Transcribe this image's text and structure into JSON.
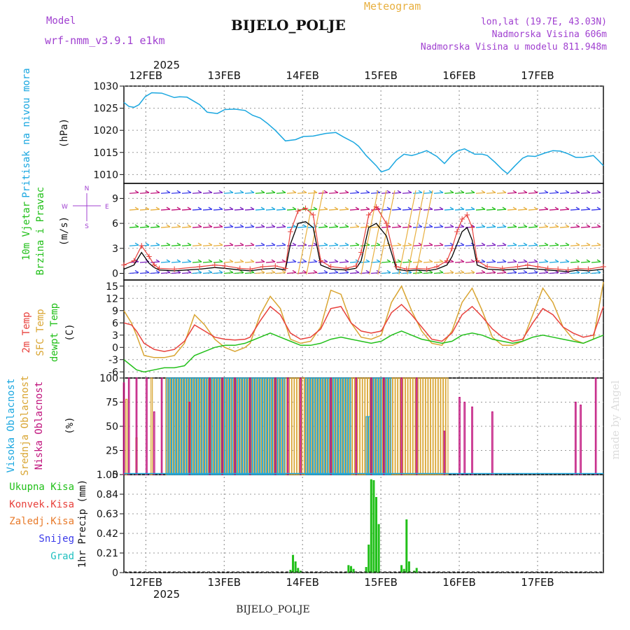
{
  "header": {
    "model_label": "Model",
    "model_name": "wrf-nmm_v3.9.1 e1km",
    "product": "Meteogram",
    "station": "BIJELO_POLJE",
    "coords": "lon,lat (19.7E, 43.03N)",
    "altitude": "Nadmorska Visina 606m",
    "model_altitude": "Nadmorska Visina u modelu 811.948m",
    "footer_station": "BIJELO_POLJE",
    "watermark": "made by Angel"
  },
  "time_axis": {
    "year": "2025",
    "days": [
      "12FEB",
      "13FEB",
      "14FEB",
      "15FEB",
      "16FEB",
      "17FEB"
    ]
  },
  "colors": {
    "pressure": "#1aa7e0",
    "temp2m": "#e8413c",
    "sfc_temp": "#d9a532",
    "dewpt": "#22c01a",
    "high_cloud": "#1aa7e0",
    "mid_cloud": "#d9a532",
    "low_cloud": "#c0127c",
    "total_precip": "#22c01a",
    "conv_precip": "#e8413c",
    "freezing_rain": "#e87a2a",
    "snow": "#3a3aea",
    "hail": "#20c0c0",
    "wind_speed": "#000000",
    "gust": "#e8413c",
    "wind_label": "#22c01a",
    "legend_purple": "#a040d0"
  },
  "chart_data": [
    {
      "type": "line",
      "panel": "pressure",
      "ylabel_name": "Pritisak na nivou mora",
      "unit": "(hPa)",
      "ylim": [
        1008,
        1030
      ],
      "ticks": [
        "1010",
        "1015",
        "1020",
        "1025",
        "1030"
      ],
      "x": [
        0.0,
        0.1,
        0.2,
        0.3,
        0.42,
        0.55,
        0.75,
        1.0,
        1.1,
        1.25,
        1.5,
        1.65,
        1.85,
        2.0,
        2.2,
        2.4,
        2.55,
        2.7,
        2.85,
        3.0,
        3.2,
        3.4,
        3.55,
        3.75,
        4.0,
        4.2,
        4.35,
        4.55,
        4.65,
        4.8,
        5.0,
        5.1,
        5.25,
        5.4,
        5.55,
        5.7,
        5.8,
        6.0,
        6.2,
        6.35,
        6.5,
        6.6,
        6.75,
        6.95,
        7.1,
        7.2,
        7.35,
        7.5,
        7.6,
        7.75,
        7.9,
        8.0,
        8.15,
        8.35,
        8.5,
        8.65,
        8.8,
        8.95,
        9.1,
        9.3,
        9.4,
        9.5
      ],
      "values": [
        1026.3,
        1025.4,
        1025.2,
        1025.8,
        1027.6,
        1028.5,
        1028.4,
        1027.4,
        1027.6,
        1027.5,
        1025.8,
        1024.1,
        1023.8,
        1024.7,
        1024.8,
        1024.5,
        1023.4,
        1022.8,
        1021.5,
        1020.0,
        1017.6,
        1017.9,
        1018.6,
        1018.7,
        1019.3,
        1019.5,
        1018.5,
        1017.3,
        1016.4,
        1014.3,
        1012.0,
        1010.6,
        1011.2,
        1013.3,
        1014.6,
        1014.3,
        1014.6,
        1015.4,
        1014.1,
        1012.5,
        1014.4,
        1015.3,
        1015.8,
        1014.6,
        1014.6,
        1014.3,
        1012.8,
        1011.1,
        1010.2,
        1012.0,
        1013.7,
        1014.2,
        1014.1,
        1014.9,
        1015.4,
        1015.3,
        1014.7,
        1013.9,
        1013.9,
        1014.3,
        1013.2,
        1012.0
      ]
    },
    {
      "type": "line",
      "panel": "wind",
      "ylabel_name": "10m Vjetar",
      "ylabel_name2": "Brzina i Pravac",
      "unit": "(m/s)",
      "ylim": [
        -0.8,
        10.8
      ],
      "ticks": [
        "0",
        "3",
        "6",
        "9"
      ],
      "compass": [
        "W",
        "E",
        "N",
        "S"
      ],
      "barb_levels": [
        0,
        1.3,
        3.3,
        5.5,
        7.6,
        9.6
      ],
      "speed_x": [
        0.0,
        0.2,
        0.35,
        0.5,
        0.6,
        0.7,
        1.0,
        1.5,
        1.8,
        2.0,
        2.3,
        2.5,
        2.75,
        3.0,
        3.2,
        3.3,
        3.45,
        3.6,
        3.75,
        3.9,
        4.1,
        4.4,
        4.6,
        4.7,
        4.85,
        5.0,
        5.2,
        5.4,
        5.6,
        5.8,
        6.0,
        6.2,
        6.4,
        6.5,
        6.6,
        6.7,
        6.8,
        6.9,
        7.0,
        7.2,
        7.5,
        7.8,
        8.0,
        8.2,
        8.4,
        8.6,
        8.8,
        9.0,
        9.2,
        9.5
      ],
      "speed": [
        0.5,
        1.0,
        2.5,
        1.2,
        0.7,
        0.4,
        0.3,
        0.5,
        0.7,
        0.6,
        0.4,
        0.3,
        0.5,
        0.6,
        0.4,
        3.5,
        6.0,
        6.2,
        5.5,
        1.0,
        0.5,
        0.4,
        0.6,
        1.5,
        5.5,
        6.0,
        4.5,
        0.5,
        0.3,
        0.4,
        0.3,
        0.5,
        1.0,
        2.0,
        3.5,
        5.0,
        5.5,
        4.0,
        1.0,
        0.5,
        0.4,
        0.5,
        0.6,
        0.5,
        0.4,
        0.3,
        0.2,
        0.4,
        0.3,
        0.5
      ],
      "gust": [
        1.0,
        1.5,
        3.3,
        2.0,
        1.0,
        0.6,
        0.5,
        0.8,
        1.0,
        0.9,
        0.6,
        0.5,
        0.8,
        0.9,
        0.6,
        5.0,
        7.5,
        7.8,
        7.0,
        1.5,
        0.8,
        0.6,
        0.9,
        2.5,
        7.0,
        8.0,
        6.0,
        0.8,
        0.5,
        0.6,
        0.5,
        0.8,
        1.5,
        3.0,
        5.0,
        6.5,
        7.0,
        5.5,
        1.5,
        0.8,
        0.6,
        0.8,
        1.0,
        0.8,
        0.6,
        0.5,
        0.4,
        0.6,
        0.5,
        0.8
      ]
    },
    {
      "type": "line",
      "panel": "temperature",
      "series_labels": [
        "2m Temp",
        "SFC Temp",
        "dewpt Temp"
      ],
      "unit": "(C)",
      "ylim": [
        -7.5,
        16.5
      ],
      "ticks": [
        "-6",
        "-3",
        "0",
        "3",
        "6",
        "9",
        "12",
        "15"
      ],
      "x": [
        0.0,
        0.15,
        0.25,
        0.4,
        0.6,
        0.8,
        1.0,
        1.2,
        1.4,
        1.6,
        1.8,
        2.0,
        2.2,
        2.4,
        2.5,
        2.7,
        2.9,
        3.1,
        3.3,
        3.5,
        3.7,
        3.9,
        4.1,
        4.3,
        4.5,
        4.7,
        4.9,
        5.1,
        5.3,
        5.5,
        5.7,
        5.9,
        6.1,
        6.3,
        6.5,
        6.7,
        6.9,
        7.1,
        7.3,
        7.5,
        7.7,
        7.9,
        8.1,
        8.3,
        8.5,
        8.7,
        8.9,
        9.1,
        9.3,
        9.5
      ],
      "temp2m": [
        6.0,
        5.5,
        4.0,
        1.0,
        -0.5,
        -1.0,
        -0.5,
        1.5,
        5.5,
        4.0,
        2.5,
        2.0,
        1.8,
        2.0,
        2.5,
        6.5,
        10.0,
        8.0,
        3.5,
        2.0,
        2.5,
        4.5,
        9.5,
        10.0,
        6.0,
        4.0,
        3.5,
        4.0,
        8.5,
        10.5,
        8.0,
        5.0,
        2.0,
        1.5,
        3.5,
        8.0,
        10.0,
        7.5,
        4.5,
        2.5,
        1.5,
        2.0,
        6.0,
        9.5,
        8.0,
        5.0,
        3.5,
        2.5,
        3.0,
        10.0
      ],
      "sfc_temp": [
        9.0,
        6.0,
        3.0,
        -2.0,
        -2.5,
        -2.5,
        -2.0,
        1.0,
        8.0,
        5.5,
        2.0,
        0.0,
        -1.0,
        0.0,
        1.0,
        8.0,
        12.5,
        9.5,
        2.0,
        1.0,
        1.5,
        5.0,
        14.0,
        13.0,
        6.0,
        2.5,
        2.0,
        3.0,
        11.0,
        15.0,
        9.0,
        4.0,
        1.0,
        0.5,
        4.0,
        11.0,
        14.5,
        9.0,
        2.5,
        0.5,
        0.5,
        1.5,
        8.0,
        14.5,
        11.0,
        5.0,
        2.0,
        1.0,
        2.0,
        16.0
      ],
      "dewpt": [
        -3.0,
        -4.5,
        -5.5,
        -6.0,
        -5.5,
        -5.0,
        -5.0,
        -4.5,
        -2.0,
        -1.0,
        0.0,
        0.5,
        0.5,
        1.0,
        1.5,
        2.5,
        3.5,
        2.5,
        1.5,
        0.5,
        0.5,
        1.0,
        2.0,
        2.5,
        2.0,
        1.5,
        1.0,
        1.5,
        3.0,
        4.0,
        3.0,
        2.0,
        1.5,
        1.0,
        1.5,
        3.0,
        3.5,
        3.0,
        2.0,
        1.5,
        1.0,
        1.5,
        2.5,
        3.0,
        2.5,
        2.0,
        1.5,
        1.0,
        2.0,
        3.0
      ]
    },
    {
      "type": "bar",
      "panel": "clouds",
      "series_labels": [
        "Visoka Oblacnost",
        "Srednja Oblacnost",
        "Niska Oblacnost"
      ],
      "unit": "(%)",
      "ylim": [
        0,
        100
      ],
      "ticks": [
        "0",
        "25",
        "50",
        "75",
        "100"
      ],
      "high_ranges": [
        [
          0.85,
          3.2,
          100
        ],
        [
          3.6,
          4.5,
          100
        ],
        [
          4.8,
          4.9,
          60
        ],
        [
          4.9,
          5.3,
          100
        ]
      ],
      "mid_ranges": [
        [
          0.85,
          3.2,
          100
        ],
        [
          3.3,
          3.6,
          100
        ],
        [
          3.6,
          4.5,
          100
        ],
        [
          4.5,
          6.4,
          100
        ]
      ],
      "low_bars": [
        [
          0.0,
          95
        ],
        [
          0.1,
          100
        ],
        [
          0.25,
          100
        ],
        [
          0.45,
          100
        ],
        [
          0.6,
          65
        ],
        [
          0.75,
          100
        ],
        [
          1.3,
          75
        ],
        [
          1.7,
          100
        ],
        [
          1.95,
          100
        ],
        [
          2.2,
          100
        ],
        [
          2.5,
          100
        ],
        [
          3.0,
          100
        ],
        [
          3.25,
          100
        ],
        [
          3.5,
          100
        ],
        [
          4.1,
          100
        ],
        [
          4.6,
          100
        ],
        [
          4.9,
          100
        ],
        [
          5.15,
          100
        ],
        [
          5.5,
          100
        ],
        [
          5.8,
          100
        ],
        [
          6.35,
          45
        ],
        [
          6.65,
          80
        ],
        [
          6.75,
          75
        ],
        [
          6.9,
          70
        ],
        [
          7.3,
          65
        ],
        [
          8.95,
          75
        ],
        [
          9.05,
          72
        ],
        [
          9.35,
          100
        ]
      ],
      "mid_scattered": [
        [
          0.05,
          78
        ],
        [
          0.25,
          38
        ],
        [
          0.55,
          100
        ]
      ]
    },
    {
      "type": "bar",
      "panel": "precip",
      "series_labels": [
        "Ukupna Kisa",
        "Konvek.Kisa",
        "Zaledj.Kisa",
        "Snijeg",
        "Grad"
      ],
      "ylabel": "1hr Precip (mm)",
      "ylim": [
        0,
        1.05
      ],
      "ticks": [
        "0",
        "0.21",
        "0.42",
        "0.63",
        "0.84",
        "1.05"
      ],
      "x": [
        3.3,
        3.35,
        3.4,
        3.45,
        3.5,
        4.45,
        4.5,
        4.55,
        4.8,
        4.85,
        4.9,
        4.95,
        5.0,
        5.05,
        5.5,
        5.55,
        5.6,
        5.65,
        5.75,
        5.8
      ],
      "values": [
        0.03,
        0.19,
        0.12,
        0.05,
        0.02,
        0.08,
        0.07,
        0.04,
        0.06,
        0.3,
        1.0,
        0.99,
        0.81,
        0.52,
        0.08,
        0.04,
        0.57,
        0.12,
        0.02,
        0.05
      ]
    }
  ]
}
